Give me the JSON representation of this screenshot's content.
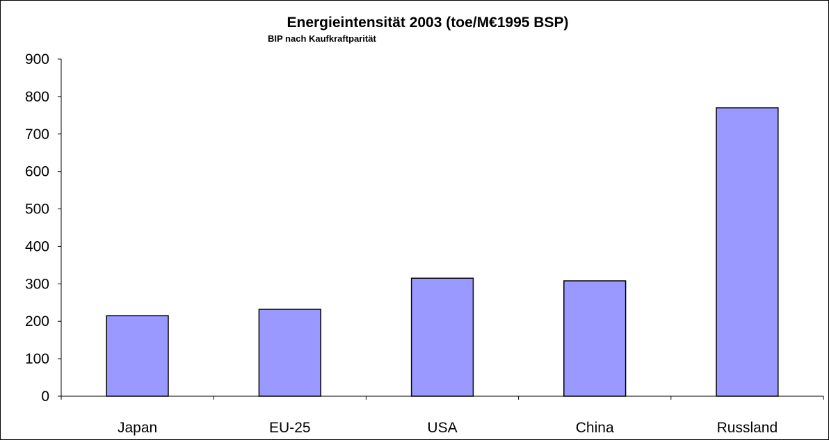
{
  "chart_data": {
    "type": "bar",
    "title": "Energieintensität 2003 (toe/M€1995 BSP)",
    "subtitle": "BIP nach Kaufkraftparität",
    "categories": [
      "Japan",
      "EU-25",
      "USA",
      "China",
      "Russland"
    ],
    "values": [
      215,
      232,
      315,
      308,
      770
    ],
    "ylim": [
      0,
      900
    ],
    "yticks": [
      0,
      100,
      200,
      300,
      400,
      500,
      600,
      700,
      800,
      900
    ],
    "bar_color": "#9999ff",
    "grid": false,
    "legend": "none",
    "xlabel": "",
    "ylabel": ""
  }
}
